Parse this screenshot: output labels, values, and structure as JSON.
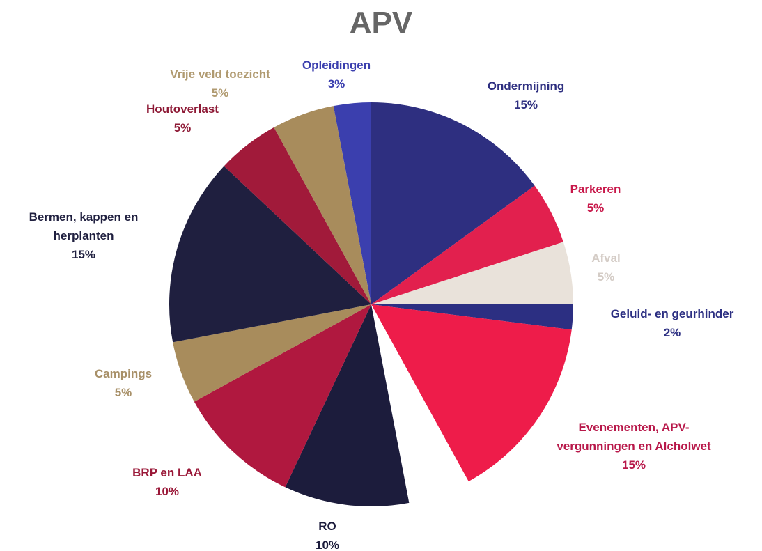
{
  "chart_data": {
    "type": "pie",
    "title": "APV",
    "categories": [
      "Opleidingen",
      "Ondermijning",
      "Parkeren",
      "Afval",
      "Geluid- en geurhinder",
      "Evenementen, APV-vergunningen en Alcholwet",
      null,
      "RO",
      "BRP en LAA",
      "Campings",
      "Bermen, kappen en herplanten",
      "Houtoverlast",
      "Vrije veld toezicht"
    ],
    "values": [
      3,
      15,
      5,
      5,
      2,
      15,
      5,
      10,
      10,
      5,
      15,
      5,
      5
    ],
    "value_labels": [
      "3%",
      "15%",
      "5%",
      "5%",
      "2%",
      "15%",
      null,
      "10%",
      "10%",
      "5%",
      "15%",
      "5%",
      "5%"
    ],
    "colors": [
      "#3b3fae",
      "#2e2f80",
      "#e2204e",
      "#e9e2da",
      "#2c2f82",
      "#ee1c4a",
      "#ffffff",
      "#1c1c3c",
      "#b0183f",
      "#a88c5c",
      "#1f1f3f",
      "#a11a3a",
      "#a88c5c"
    ],
    "label_colors": [
      "#3b3fae",
      "#2e2f80",
      "#c8184a",
      "#d4ccc6",
      "#2c2f82",
      "#b8184a",
      null,
      "#1c1c3c",
      "#9a1838",
      "#a89068",
      "#1f1f3f",
      "#8e1a36",
      "#b09a70"
    ]
  }
}
